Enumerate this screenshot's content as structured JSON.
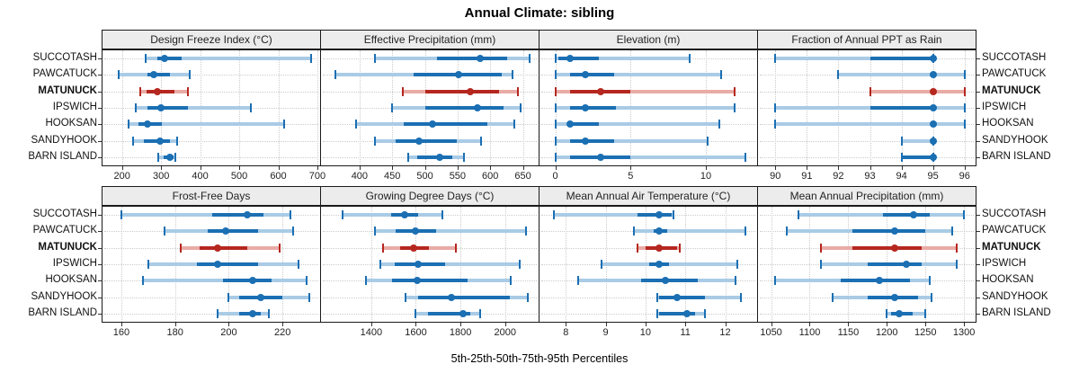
{
  "title": "Annual Climate: sibling",
  "caption": "5th-25th-50th-75th-95th Percentiles",
  "sites": [
    "SUCCOTASH",
    "PAWCATUCK",
    "MATUNUCK",
    "IPSWICH",
    "HOOKSAN",
    "SANDYHOOK",
    "BARN ISLAND"
  ],
  "highlight_site": "MATUNUCK",
  "colors": {
    "blue": "#1b6fb3",
    "blue_light": "#a9cbe6",
    "red": "#b5271f",
    "red_light": "#e9aba6",
    "grid": "#cccccc",
    "strip_bg": "#ececec",
    "border": "#1a1a1a"
  },
  "chart_data": {
    "type": "dot-interval",
    "title": "Annual Climate: sibling",
    "xlabel": "5th-25th-50th-75th-95th Percentiles",
    "percentiles": [
      5,
      25,
      50,
      75,
      95
    ],
    "layout": "2 rows x 4 columns, sites listed top-to-bottom on both sides, MATUNUCK highlighted red",
    "panels": [
      {
        "title": "Design Freeze Index (°C)",
        "xmin": 150,
        "xmax": 707,
        "ticks": [
          200,
          300,
          400,
          500,
          600,
          700
        ],
        "values": {
          "SUCCOTASH": [
            260,
            290,
            308,
            352,
            683
          ],
          "PAWCATUCK": [
            192,
            264,
            281,
            322,
            373
          ],
          "MATUNUCK": [
            247,
            263,
            291,
            333,
            369
          ],
          "IPSWICH": [
            236,
            264,
            300,
            368,
            530
          ],
          "HOOKSAN": [
            217,
            241,
            266,
            302,
            615
          ],
          "SANDYHOOK": [
            228,
            257,
            297,
            322,
            341
          ],
          "BARN ISLAND": [
            293,
            306,
            322,
            333,
            337
          ]
        }
      },
      {
        "title": "Effective Precipitation (mm)",
        "xmin": 341,
        "xmax": 674,
        "ticks": [
          400,
          450,
          500,
          550,
          600,
          650
        ],
        "values": {
          "SUCCOTASH": [
            423,
            519,
            584,
            626,
            660
          ],
          "PAWCATUCK": [
            363,
            483,
            551,
            618,
            634
          ],
          "MATUNUCK": [
            466,
            500,
            569,
            614,
            643
          ],
          "IPSWICH": [
            450,
            500,
            580,
            620,
            646
          ],
          "HOOKSAN": [
            394,
            468,
            512,
            595,
            637
          ],
          "SANDYHOOK": [
            423,
            455,
            491,
            549,
            586
          ],
          "BARN ISLAND": [
            474,
            488,
            522,
            542,
            560
          ]
        }
      },
      {
        "title": "Elevation (m)",
        "xmin": -1.05,
        "xmax": 13.4,
        "ticks": [
          0,
          5,
          10
        ],
        "values": {
          "SUCCOTASH": [
            0,
            0.2,
            1,
            2.9,
            8.9
          ],
          "PAWCATUCK": [
            0,
            1,
            2,
            3.9,
            11
          ],
          "MATUNUCK": [
            0,
            1,
            3,
            5,
            11.9
          ],
          "IPSWICH": [
            0,
            1,
            2,
            4,
            11.9
          ],
          "HOOKSAN": [
            0,
            0.9,
            1,
            2.9,
            10.9
          ],
          "SANDYHOOK": [
            0,
            1,
            2,
            3.9,
            10.1
          ],
          "BARN ISLAND": [
            0,
            1,
            3,
            5,
            12.6
          ]
        }
      },
      {
        "title": "Fraction of Annual PPT as Rain",
        "xmin": 89.45,
        "xmax": 96.35,
        "ticks": [
          90,
          91,
          92,
          93,
          94,
          95,
          96
        ],
        "values": {
          "SUCCOTASH": [
            90,
            93,
            95,
            95,
            95
          ],
          "PAWCATUCK": [
            92,
            95,
            95,
            95,
            96
          ],
          "MATUNUCK": [
            93,
            95,
            95,
            95,
            96
          ],
          "IPSWICH": [
            90,
            93,
            95,
            95,
            96
          ],
          "HOOKSAN": [
            90,
            95,
            95,
            95,
            96
          ],
          "SANDYHOOK": [
            94,
            95,
            95,
            95,
            95
          ],
          "BARN ISLAND": [
            94,
            94,
            95,
            95,
            95
          ]
        }
      },
      {
        "title": "Frost-Free Days",
        "xmin": 153,
        "xmax": 234,
        "ticks": [
          160,
          180,
          200,
          220
        ],
        "values": {
          "SUCCOTASH": [
            160,
            194,
            207,
            213,
            223
          ],
          "PAWCATUCK": [
            176,
            192,
            199,
            211,
            224
          ],
          "MATUNUCK": [
            182,
            189,
            196,
            207,
            219
          ],
          "IPSWICH": [
            170,
            188,
            196,
            211,
            226
          ],
          "HOOKSAN": [
            168,
            198,
            209,
            216,
            229
          ],
          "SANDYHOOK": [
            200,
            204,
            212,
            220,
            230
          ],
          "BARN ISLAND": [
            196,
            204,
            209,
            212,
            215
          ]
        }
      },
      {
        "title": "Growing Degree Days (°C)",
        "xmin": 1175,
        "xmax": 2150,
        "ticks": [
          1400,
          1600,
          1800,
          2000
        ],
        "values": {
          "SUCCOTASH": [
            1270,
            1490,
            1550,
            1610,
            1720
          ],
          "PAWCATUCK": [
            1415,
            1510,
            1600,
            1690,
            2095
          ],
          "MATUNUCK": [
            1455,
            1530,
            1590,
            1660,
            1780
          ],
          "IPSWICH": [
            1440,
            1505,
            1610,
            1730,
            2065
          ],
          "HOOKSAN": [
            1375,
            1495,
            1605,
            1830,
            2025
          ],
          "SANDYHOOK": [
            1555,
            1610,
            1760,
            2020,
            2100
          ],
          "BARN ISLAND": [
            1600,
            1655,
            1810,
            1845,
            1890
          ]
        }
      },
      {
        "title": "Mean Annual Air Temperature (°C)",
        "xmin": 7.34,
        "xmax": 12.8,
        "ticks": [
          8,
          9,
          10,
          11,
          12
        ],
        "values": {
          "SUCCOTASH": [
            7.7,
            9.8,
            10.35,
            10.65,
            10.7
          ],
          "PAWCATUCK": [
            9.7,
            10.2,
            10.35,
            10.55,
            12.5
          ],
          "MATUNUCK": [
            9.8,
            10.0,
            10.35,
            10.8,
            10.85
          ],
          "IPSWICH": [
            8.9,
            10.1,
            10.35,
            10.6,
            12.3
          ],
          "HOOKSAN": [
            8.3,
            9.9,
            10.5,
            11.3,
            12.25
          ],
          "SANDYHOOK": [
            10.3,
            10.35,
            10.8,
            11.5,
            12.4
          ],
          "BARN ISLAND": [
            10.3,
            10.35,
            11.05,
            11.25,
            11.5
          ]
        }
      },
      {
        "title": "Mean Annual Precipitation (mm)",
        "xmin": 1033,
        "xmax": 1315,
        "ticks": [
          1050,
          1100,
          1150,
          1200,
          1250,
          1300
        ],
        "values": {
          "SUCCOTASH": [
            1085,
            1195,
            1235,
            1255,
            1300
          ],
          "PAWCATUCK": [
            1070,
            1155,
            1210,
            1250,
            1285
          ],
          "MATUNUCK": [
            1115,
            1155,
            1210,
            1245,
            1290
          ],
          "IPSWICH": [
            1115,
            1175,
            1225,
            1245,
            1290
          ],
          "HOOKSAN": [
            1055,
            1140,
            1190,
            1230,
            1255
          ],
          "SANDYHOOK": [
            1130,
            1175,
            1210,
            1240,
            1258
          ],
          "BARN ISLAND": [
            1200,
            1205,
            1216,
            1233,
            1250
          ]
        }
      }
    ]
  }
}
